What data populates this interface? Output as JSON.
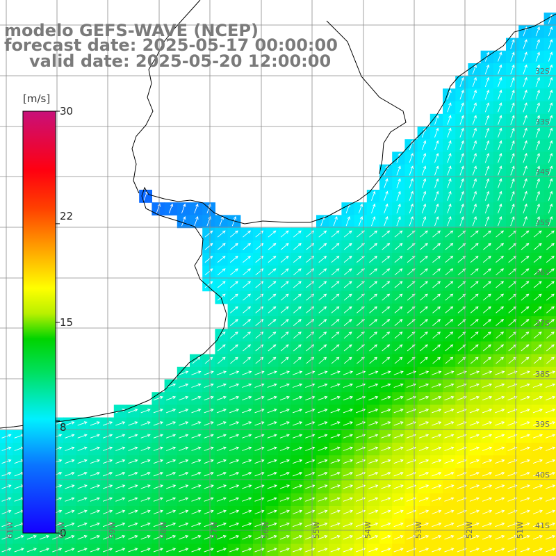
{
  "title": {
    "line1": "modelo GEFS-WAVE (NCEP)",
    "line2": "forecast date: 2025-05-17 00:00:00",
    "line3": "valid date: 2025-05-20 12:00:00"
  },
  "colorbar": {
    "units": "[m/s]",
    "ticks": [
      "0",
      "8",
      "15",
      "22",
      "30"
    ],
    "tick_values": [
      0,
      8,
      15,
      22,
      30
    ],
    "vmin": 0,
    "vmax": 30
  },
  "lat_labels": [
    "32S",
    "33S",
    "34S",
    "35S",
    "36S",
    "37S",
    "38S",
    "39S",
    "40S",
    "41S"
  ],
  "lat_values": [
    32,
    33,
    34,
    35,
    36,
    37,
    38,
    39,
    40,
    41
  ],
  "lon_labels": [
    "61W",
    "60W",
    "59W",
    "58W",
    "57W",
    "56W",
    "55W",
    "54W",
    "53W",
    "52W",
    "51W"
  ],
  "lon_values": [
    61,
    60,
    59,
    58,
    57,
    56,
    55,
    54,
    53,
    52,
    51
  ],
  "colors": {
    "land": "#ffffff",
    "grid": "#8a8a8a",
    "coast": "#000000",
    "arrow": "#ffffff",
    "title": "#7a7a7a"
  }
}
